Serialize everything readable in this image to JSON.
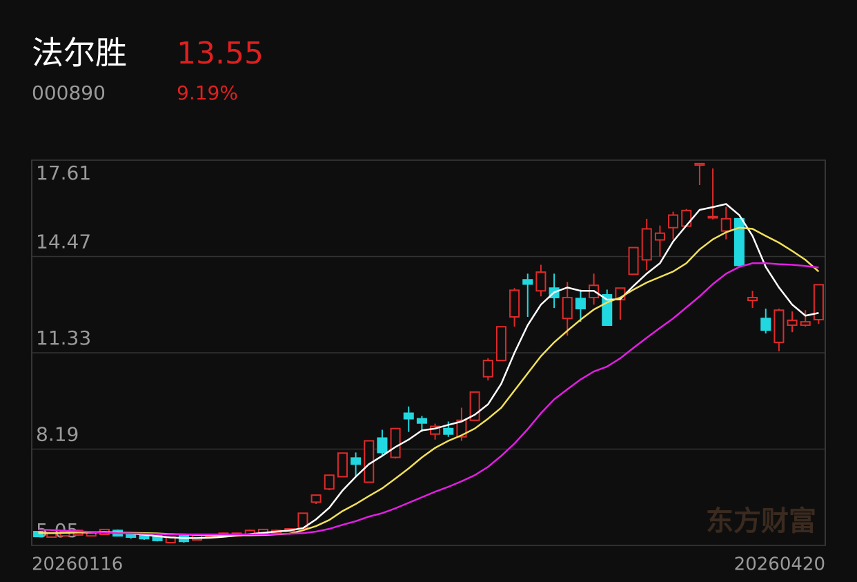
{
  "header": {
    "name": "法尔胜",
    "price": "13.55",
    "code": "000890",
    "change": "9.19%"
  },
  "chart_data": {
    "type": "candlestick",
    "watermark": "东方财富",
    "categories": [
      "20260116",
      null,
      null,
      null,
      null,
      null,
      null,
      null,
      null,
      null,
      null,
      null,
      null,
      null,
      null,
      null,
      null,
      null,
      null,
      null,
      null,
      null,
      null,
      null,
      null,
      null,
      null,
      null,
      null,
      null,
      null,
      null,
      null,
      null,
      null,
      null,
      null,
      null,
      null,
      null,
      null,
      null,
      null,
      null,
      null,
      null,
      null,
      null,
      null,
      null,
      null,
      null,
      null,
      null,
      null,
      null,
      null,
      null,
      null,
      "20260420"
    ],
    "open": [
      5.5,
      5.32,
      5.36,
      5.39,
      5.36,
      5.41,
      5.54,
      5.45,
      5.45,
      5.36,
      5.14,
      5.36,
      5.23,
      5.34,
      5.36,
      5.36,
      5.39,
      5.43,
      5.45,
      5.5,
      5.61,
      6.46,
      6.89,
      7.29,
      7.9,
      7.11,
      8.55,
      7.92,
      9.36,
      9.18,
      8.68,
      8.86,
      8.59,
      9.13,
      10.55,
      11.08,
      12.5,
      13.71,
      13.35,
      13.44,
      12.45,
      13.1,
      13.13,
      13.22,
      13.06,
      13.89,
      14.36,
      15.01,
      15.41,
      15.46,
      17.45,
      15.73,
      15.3,
      15.7,
      13.04,
      12.45,
      11.67,
      12.23,
      12.23,
      12.41
    ],
    "high": [
      5.52,
      5.47,
      5.52,
      5.57,
      5.52,
      5.59,
      5.57,
      5.47,
      5.47,
      5.39,
      5.34,
      5.39,
      5.41,
      5.43,
      5.47,
      5.47,
      5.57,
      5.59,
      5.57,
      5.61,
      6.12,
      6.71,
      7.36,
      8.08,
      8.08,
      8.48,
      8.82,
      8.88,
      9.58,
      9.27,
      9.02,
      9.09,
      9.54,
      10.07,
      11.15,
      12.2,
      13.44,
      13.91,
      14.2,
      13.91,
      13.64,
      13.39,
      13.91,
      13.39,
      13.44,
      14.78,
      15.7,
      15.48,
      15.93,
      16.02,
      17.5,
      17.34,
      16.09,
      15.72,
      13.35,
      12.77,
      12.77,
      12.68,
      12.72,
      13.55
    ],
    "low": [
      5.32,
      5.3,
      5.34,
      5.36,
      5.34,
      5.39,
      5.34,
      5.27,
      5.23,
      5.18,
      5.12,
      5.14,
      5.21,
      5.32,
      5.34,
      5.34,
      5.36,
      5.41,
      5.43,
      5.47,
      5.59,
      6.4,
      6.85,
      7.27,
      7.29,
      7.09,
      7.97,
      7.88,
      8.75,
      8.75,
      8.5,
      8.59,
      8.46,
      9.11,
      10.43,
      11.06,
      12.18,
      12.5,
      13.17,
      12.79,
      11.89,
      12.34,
      12.9,
      12.23,
      12.41,
      13.87,
      14.02,
      14.47,
      15.03,
      15.44,
      16.8,
      15.68,
      15.03,
      14.16,
      12.79,
      11.96,
      11.38,
      12.0,
      12.18,
      12.27
    ],
    "close": [
      5.34,
      5.45,
      5.5,
      5.54,
      5.5,
      5.57,
      5.36,
      5.32,
      5.27,
      5.21,
      5.32,
      5.18,
      5.39,
      5.41,
      5.45,
      5.45,
      5.54,
      5.57,
      5.54,
      5.59,
      6.1,
      6.69,
      7.34,
      8.06,
      7.7,
      8.46,
      8.08,
      8.86,
      9.18,
      9.04,
      8.93,
      8.68,
      9.13,
      10.05,
      11.08,
      12.18,
      13.37,
      13.57,
      13.96,
      13.13,
      13.13,
      12.77,
      13.53,
      12.23,
      13.44,
      14.76,
      15.37,
      15.23,
      15.82,
      15.97,
      17.5,
      15.77,
      15.7,
      14.18,
      13.13,
      12.07,
      12.72,
      12.39,
      12.34,
      13.55
    ],
    "up_color": "#e02a2a",
    "down_color": "#22d8e0",
    "lines": [
      {
        "color": "#ffffff",
        "values": [
          5.47,
          5.45,
          5.46,
          5.48,
          5.48,
          5.49,
          5.47,
          5.44,
          5.4,
          5.35,
          5.31,
          5.29,
          5.29,
          5.3,
          5.33,
          5.37,
          5.42,
          5.46,
          5.5,
          5.54,
          5.61,
          5.9,
          6.28,
          6.84,
          7.29,
          7.7,
          7.97,
          8.26,
          8.5,
          8.8,
          8.86,
          8.98,
          9.09,
          9.31,
          9.65,
          10.32,
          11.33,
          12.23,
          12.9,
          13.3,
          13.46,
          13.35,
          13.35,
          13.06,
          13.08,
          13.51,
          13.91,
          14.25,
          14.96,
          15.48,
          15.99,
          16.08,
          16.18,
          15.82,
          15.14,
          14.13,
          13.46,
          12.9,
          12.54,
          12.63
        ]
      },
      {
        "color": "#f2e15a",
        "values": [
          5.45,
          5.45,
          5.46,
          5.47,
          5.47,
          5.48,
          5.47,
          5.46,
          5.45,
          5.44,
          5.42,
          5.41,
          5.39,
          5.38,
          5.38,
          5.38,
          5.38,
          5.39,
          5.41,
          5.43,
          5.54,
          5.68,
          5.88,
          6.17,
          6.4,
          6.66,
          6.91,
          7.23,
          7.56,
          7.92,
          8.23,
          8.46,
          8.64,
          8.86,
          9.18,
          9.54,
          10.1,
          10.66,
          11.22,
          11.67,
          12.05,
          12.41,
          12.74,
          12.97,
          13.13,
          13.39,
          13.62,
          13.8,
          13.98,
          14.25,
          14.7,
          15.03,
          15.26,
          15.41,
          15.37,
          15.14,
          14.92,
          14.65,
          14.36,
          13.98
        ]
      },
      {
        "color": "#e41ee4",
        "values": [
          5.57,
          5.55,
          5.53,
          5.51,
          5.49,
          5.47,
          5.45,
          5.44,
          5.43,
          5.42,
          5.41,
          5.41,
          5.41,
          5.41,
          5.41,
          5.41,
          5.41,
          5.41,
          5.42,
          5.43,
          5.45,
          5.5,
          5.59,
          5.72,
          5.84,
          5.99,
          6.1,
          6.26,
          6.44,
          6.62,
          6.8,
          6.96,
          7.14,
          7.34,
          7.61,
          7.97,
          8.37,
          8.84,
          9.36,
          9.81,
          10.14,
          10.46,
          10.72,
          10.88,
          11.15,
          11.49,
          11.82,
          12.14,
          12.45,
          12.81,
          13.17,
          13.57,
          13.91,
          14.13,
          14.25,
          14.25,
          14.22,
          14.2,
          14.16,
          14.11
        ]
      }
    ],
    "ylim": [
      5.05,
      17.61
    ],
    "yticks": [
      5.05,
      8.19,
      11.33,
      14.47,
      17.61
    ],
    "grid": true
  }
}
